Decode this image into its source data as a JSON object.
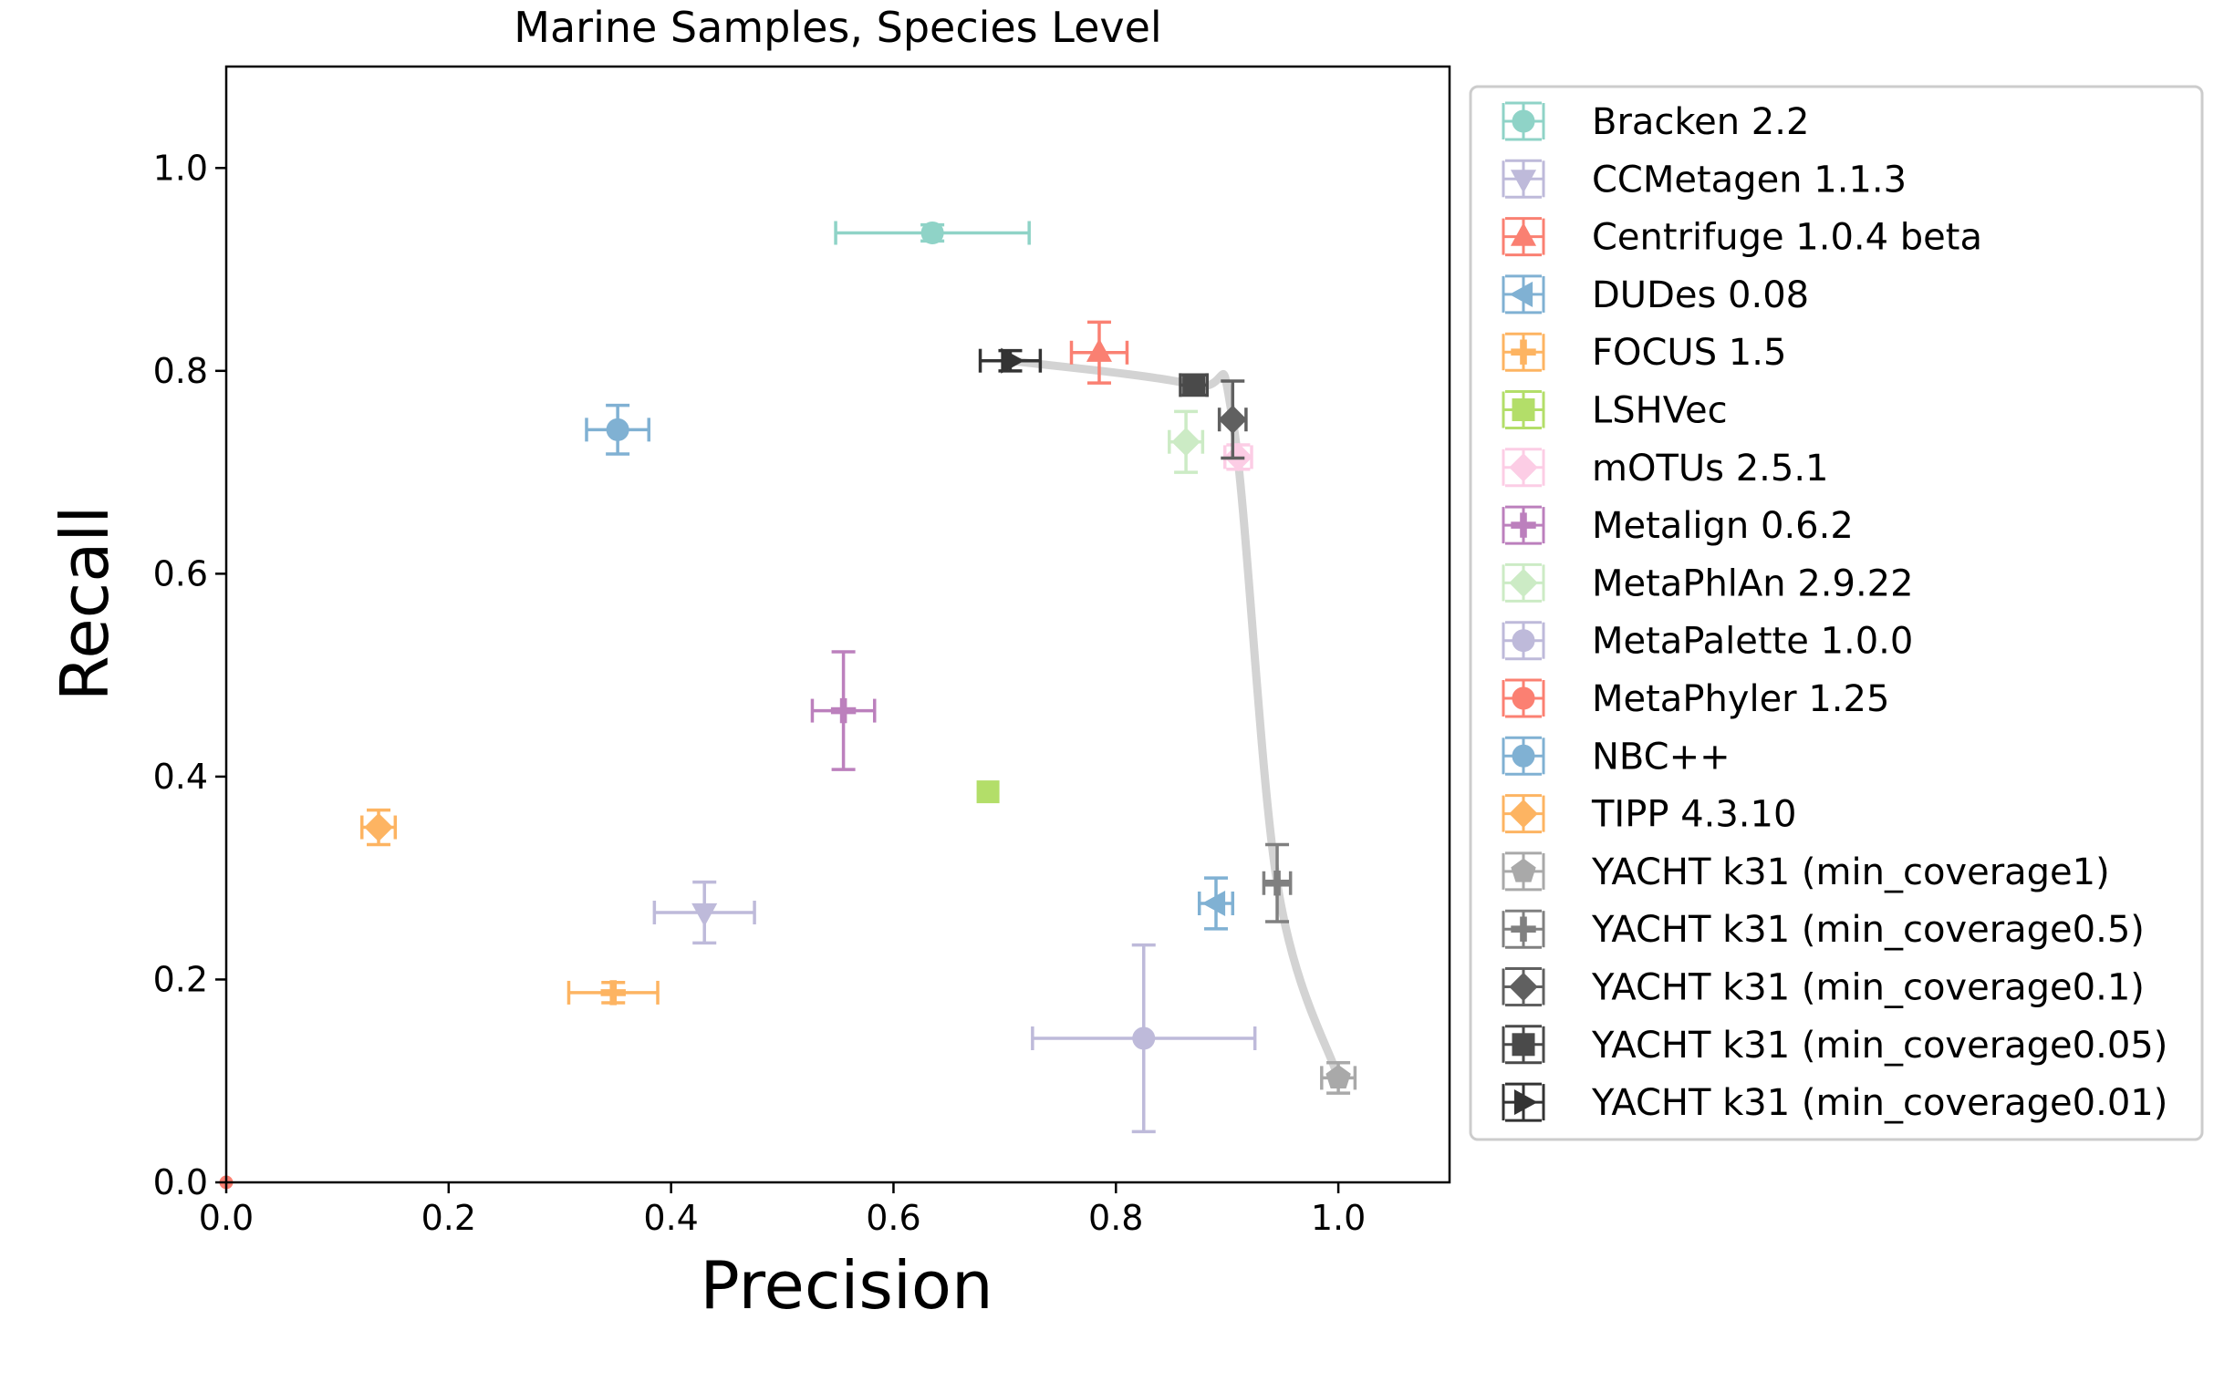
{
  "chart_data": {
    "type": "scatter",
    "title": "Marine Samples, Species Level",
    "xlabel": "Precision",
    "ylabel": "Recall",
    "xlim": [
      0.0,
      1.1
    ],
    "ylim": [
      0.0,
      1.1
    ],
    "xticks": [
      0.0,
      0.2,
      0.4,
      0.6,
      0.8,
      1.0
    ],
    "yticks": [
      0.0,
      0.2,
      0.4,
      0.6,
      0.8,
      1.0
    ],
    "xtick_labels": [
      "0.0",
      "0.2",
      "0.4",
      "0.6",
      "0.8",
      "1.0"
    ],
    "ytick_labels": [
      "0.0",
      "0.2",
      "0.4",
      "0.6",
      "0.8",
      "1.0"
    ],
    "legend_position": "outside-right",
    "series": [
      {
        "name": "Bracken 2.2",
        "color": "#8fd3c7",
        "marker": "circle",
        "x": 0.635,
        "y": 0.936,
        "xerr": 0.087,
        "yerr": 0.008
      },
      {
        "name": "CCMetagen 1.1.3",
        "color": "#bebada",
        "marker": "triangle-down",
        "x": 0.43,
        "y": 0.266,
        "xerr": 0.045,
        "yerr": 0.03
      },
      {
        "name": "Centrifuge 1.0.4 beta",
        "color": "#fa8072",
        "marker": "triangle-up",
        "x": 0.785,
        "y": 0.818,
        "xerr": 0.025,
        "yerr": 0.03
      },
      {
        "name": "DUDes 0.08",
        "color": "#80b1d3",
        "marker": "triangle-left",
        "x": 0.89,
        "y": 0.275,
        "xerr": 0.015,
        "yerr": 0.025
      },
      {
        "name": "FOCUS 1.5",
        "color": "#fdb462",
        "marker": "plus",
        "x": 0.348,
        "y": 0.187,
        "xerr": 0.04,
        "yerr": 0.01
      },
      {
        "name": "LSHVec",
        "color": "#b3de69",
        "marker": "square",
        "x": 0.685,
        "y": 0.385,
        "xerr": 0.0,
        "yerr": 0.0
      },
      {
        "name": "mOTUs 2.5.1",
        "color": "#fccde5",
        "marker": "diamond",
        "x": 0.91,
        "y": 0.715,
        "xerr": 0.012,
        "yerr": 0.012
      },
      {
        "name": "Metalign 0.6.2",
        "color": "#bc80bd",
        "marker": "plus",
        "x": 0.555,
        "y": 0.465,
        "xerr": 0.028,
        "yerr": 0.058
      },
      {
        "name": "MetaPhlAn 2.9.22",
        "color": "#ccebc5",
        "marker": "diamond",
        "x": 0.863,
        "y": 0.73,
        "xerr": 0.015,
        "yerr": 0.03
      },
      {
        "name": "MetaPalette 1.0.0",
        "color": "#bebada",
        "marker": "circle",
        "x": 0.825,
        "y": 0.142,
        "xerr": 0.1,
        "yerr": 0.092
      },
      {
        "name": "MetaPhyler 1.25",
        "color": "#fb8072",
        "marker": "circle",
        "x": 0.0,
        "y": 0.0,
        "xerr": 0.0,
        "yerr": 0.0
      },
      {
        "name": "NBC++",
        "color": "#80b1d3",
        "marker": "circle",
        "x": 0.352,
        "y": 0.742,
        "xerr": 0.028,
        "yerr": 0.024
      },
      {
        "name": "TIPP 4.3.10",
        "color": "#fdb462",
        "marker": "diamond",
        "x": 0.137,
        "y": 0.35,
        "xerr": 0.015,
        "yerr": 0.017
      },
      {
        "name": "YACHT k31 (min_coverage1)",
        "color": "#a9a9a9",
        "marker": "pentagon",
        "x": 1.0,
        "y": 0.103,
        "xerr": 0.015,
        "yerr": 0.015
      },
      {
        "name": "YACHT k31 (min_coverage0.5)",
        "color": "#808080",
        "marker": "plus",
        "x": 0.945,
        "y": 0.295,
        "xerr": 0.012,
        "yerr": 0.038
      },
      {
        "name": "YACHT k31 (min_coverage0.1)",
        "color": "#606060",
        "marker": "diamond",
        "x": 0.905,
        "y": 0.752,
        "xerr": 0.012,
        "yerr": 0.038
      },
      {
        "name": "YACHT k31 (min_coverage0.05)",
        "color": "#4a4a4a",
        "marker": "square",
        "x": 0.87,
        "y": 0.786,
        "xerr": 0.012,
        "yerr": 0.01
      },
      {
        "name": "YACHT k31 (min_coverage0.01)",
        "color": "#333333",
        "marker": "triangle-right",
        "x": 0.705,
        "y": 0.81,
        "xerr": 0.027,
        "yerr": 0.01
      }
    ],
    "pareto_curve": {
      "color": "#d3d3d3",
      "x": [
        0.705,
        0.87,
        0.905,
        0.945,
        1.0
      ],
      "y": [
        0.81,
        0.786,
        0.752,
        0.295,
        0.103
      ]
    }
  }
}
